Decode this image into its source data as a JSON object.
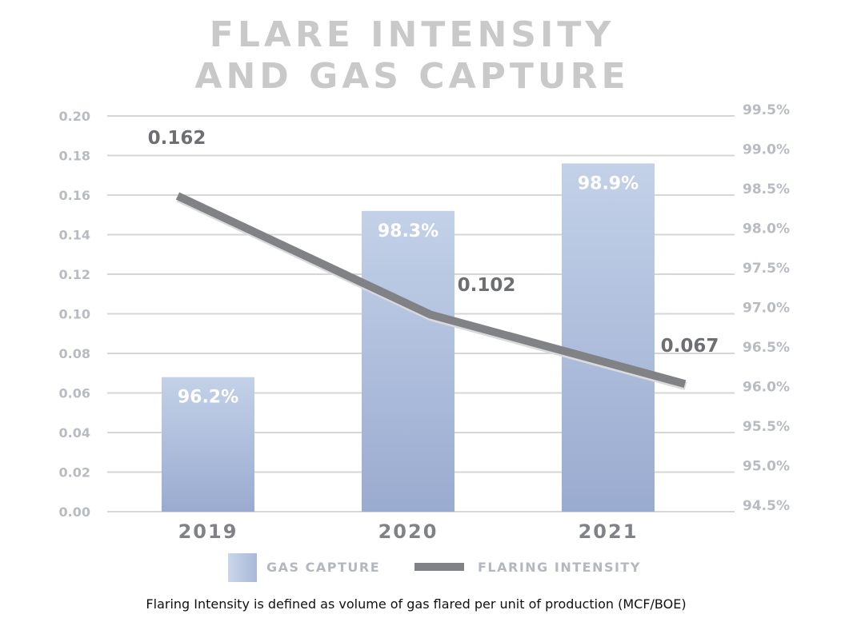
{
  "title_line1": "FLARE INTENSITY",
  "title_line2": "AND GAS CAPTURE",
  "footnote": "Flaring Intensity is defined as volume of gas flared per unit of production (MCF/BOE)",
  "legend": {
    "gas_capture": "GAS CAPTURE",
    "flaring_intensity": "FLARING INTENSITY"
  },
  "colors": {
    "title": "#c9c9c9",
    "bar_top": "#c3d1e8",
    "bar_bottom": "#9aabd0",
    "line": "#808285",
    "axis_text": "#b8bcc2",
    "grid": "#d6d6d6",
    "year_text": "#808285"
  },
  "chart_data": {
    "type": "bar+line",
    "categories": [
      "2019",
      "2020",
      "2021"
    ],
    "series": [
      {
        "name": "GAS CAPTURE",
        "type": "bar",
        "axis": "right",
        "values": [
          96.2,
          98.3,
          98.9
        ],
        "labels": [
          "96.2%",
          "98.3%",
          "98.9%"
        ]
      },
      {
        "name": "FLARING INTENSITY",
        "type": "line",
        "axis": "left",
        "values": [
          0.162,
          0.102,
          0.067
        ],
        "labels": [
          "0.162",
          "0.102",
          "0.067"
        ]
      }
    ],
    "left_axis": {
      "range": [
        0,
        0.2
      ],
      "ticks": [
        "0.00",
        "0.02",
        "0.04",
        "0.06",
        "0.08",
        "0.10",
        "0.12",
        "0.14",
        "0.16",
        "0.18",
        "0.20"
      ]
    },
    "right_axis": {
      "range": [
        94.5,
        99.5
      ],
      "ticks": [
        "94.5%",
        "95.0%",
        "95.5%",
        "96.0%",
        "96.5%",
        "97.0%",
        "97.5%",
        "98.0%",
        "98.5%",
        "99.0%",
        "99.5%"
      ]
    },
    "grid": true,
    "legend_position": "bottom"
  }
}
